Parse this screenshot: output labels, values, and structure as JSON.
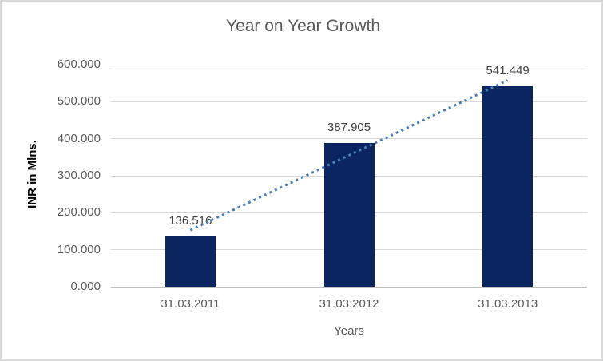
{
  "window": {
    "background": "#ffffff",
    "border_color": "#d9d9d9"
  },
  "chart_data": {
    "type": "bar",
    "title": "Year on Year Growth",
    "categories": [
      "31.03.2011",
      "31.03.2012",
      "31.03.2013"
    ],
    "values": [
      136.516,
      387.905,
      541.449
    ],
    "data_labels": [
      "136.516",
      "387.905",
      "541.449"
    ],
    "xlabel": "Years",
    "ylabel": "INR in Mlns.",
    "ylim": [
      0,
      600
    ],
    "ytick_step": 100,
    "ytick_labels": [
      "0.000",
      "100.000",
      "200.000",
      "300.000",
      "400.000",
      "500.000",
      "600.000"
    ],
    "grid": true,
    "legend": "none",
    "trendline": {
      "type": "linear",
      "style": "dotted",
      "color": "#4a7ebb"
    },
    "colors": {
      "bar": "#0b2561",
      "gridline": "#d9d9d9",
      "axis_line": "#bfbfbf",
      "title_text": "#595959",
      "tick_text": "#595959",
      "data_label_text": "#3f3f3f",
      "ylabel_text": "#000000"
    }
  }
}
